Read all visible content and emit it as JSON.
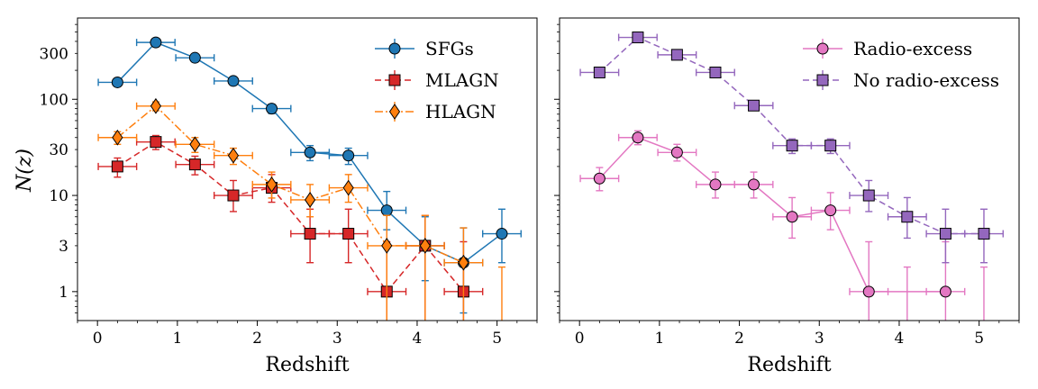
{
  "chart_data": [
    {
      "type": "scatter",
      "panel": "left",
      "xlabel": "Redshift",
      "ylabel": "N(z)",
      "xlim": [
        -0.25,
        5.5
      ],
      "ylim": [
        0.5,
        700
      ],
      "yscale": "log",
      "x_ticks": [
        0,
        1,
        2,
        3,
        4,
        5
      ],
      "x_tick_labels": [
        "0",
        "1",
        "2",
        "3",
        "4",
        "5"
      ],
      "y_ticks": [
        1,
        3,
        10,
        30,
        100,
        300
      ],
      "y_tick_labels": [
        "1",
        "3",
        "10",
        "30",
        "100",
        "300"
      ],
      "legend_position": "top-right",
      "series": [
        {
          "name": "SFGs",
          "color": "#1f77b4",
          "linestyle": "solid",
          "marker": "circle",
          "x": [
            0.25,
            0.73,
            1.22,
            1.7,
            2.18,
            2.66,
            3.14,
            3.62,
            4.1,
            4.58,
            5.06
          ],
          "y": [
            150,
            390,
            270,
            155,
            80,
            28,
            26,
            7,
            3,
            2,
            4
          ],
          "xerr": 0.24,
          "yerr_low": [
            12,
            20,
            16,
            12,
            9,
            5,
            5,
            2.6,
            1.7,
            1.4,
            2
          ],
          "yerr_high": [
            12,
            20,
            16,
            12,
            9,
            5,
            5,
            4,
            3,
            2.6,
            3.2
          ]
        },
        {
          "name": "MLAGN",
          "color": "#d62728",
          "linestyle": "dashed",
          "marker": "square",
          "x": [
            0.25,
            0.73,
            1.22,
            1.7,
            2.18,
            2.66,
            3.14,
            3.62,
            4.1,
            4.58
          ],
          "y": [
            20,
            36,
            21,
            10,
            12,
            4,
            4,
            1,
            3,
            1
          ],
          "xerr": 0.24,
          "yerr_low": [
            4.5,
            6,
            4.6,
            3.2,
            3.5,
            2,
            2,
            1,
            3,
            1
          ],
          "yerr_high": [
            4.5,
            6,
            4.6,
            4.3,
            4.5,
            3.2,
            3.2,
            2.3,
            3.2,
            2.3
          ]
        },
        {
          "name": "HLAGN",
          "color": "#ff7f0e",
          "linestyle": "dashdot",
          "marker": "diamond",
          "x": [
            0.25,
            0.73,
            1.22,
            1.7,
            2.18,
            2.66,
            3.14,
            3.62,
            4.1,
            4.58,
            5.06
          ],
          "y": [
            40,
            85,
            34,
            26,
            13,
            9,
            12,
            3,
            3,
            2,
            0
          ],
          "xerr": 0.24,
          "yerr_low": [
            6,
            9,
            6,
            5,
            3.6,
            3,
            3.5,
            3,
            3,
            2,
            0
          ],
          "yerr_high": [
            6,
            9,
            6,
            5,
            4.5,
            4,
            4.5,
            3.2,
            3.2,
            2.6,
            1.8
          ]
        }
      ]
    },
    {
      "type": "scatter",
      "panel": "right",
      "xlabel": "Redshift",
      "ylabel": "",
      "xlim": [
        -0.25,
        5.5
      ],
      "ylim": [
        0.5,
        700
      ],
      "yscale": "log",
      "x_ticks": [
        0,
        1,
        2,
        3,
        4,
        5
      ],
      "x_tick_labels": [
        "0",
        "1",
        "2",
        "3",
        "4",
        "5"
      ],
      "legend_position": "top-right",
      "series": [
        {
          "name": "Radio-excess",
          "color": "#e377c2",
          "linestyle": "solid",
          "marker": "circle",
          "x": [
            0.25,
            0.73,
            1.22,
            1.7,
            2.18,
            2.66,
            3.14,
            3.62,
            4.1,
            4.58,
            5.06
          ],
          "y": [
            15,
            40,
            28,
            13,
            13,
            6,
            7,
            1,
            0,
            1,
            0
          ],
          "xerr": 0.24,
          "yerr_low": [
            3.8,
            6.3,
            5.2,
            3.6,
            3.6,
            2.4,
            2.6,
            1,
            0,
            1,
            0
          ],
          "yerr_high": [
            4.5,
            7,
            6,
            4.5,
            4.5,
            3.5,
            3.7,
            2.3,
            1.8,
            2.3,
            1.8
          ]
        },
        {
          "name": "No radio-excess",
          "color": "#9467bd",
          "linestyle": "dashed",
          "marker": "square",
          "x": [
            0.25,
            0.73,
            1.22,
            1.7,
            2.18,
            2.66,
            3.14,
            3.62,
            4.1,
            4.58,
            5.06
          ],
          "y": [
            190,
            440,
            290,
            190,
            86,
            33,
            33,
            10,
            6,
            4,
            4
          ],
          "xerr": 0.24,
          "yerr_low": [
            14,
            21,
            17,
            14,
            9,
            5.7,
            5.7,
            3.2,
            2.4,
            2,
            2
          ],
          "yerr_high": [
            14,
            21,
            17,
            14,
            9,
            5.7,
            5.7,
            4.3,
            3.5,
            3.2,
            3.2
          ]
        }
      ]
    }
  ]
}
